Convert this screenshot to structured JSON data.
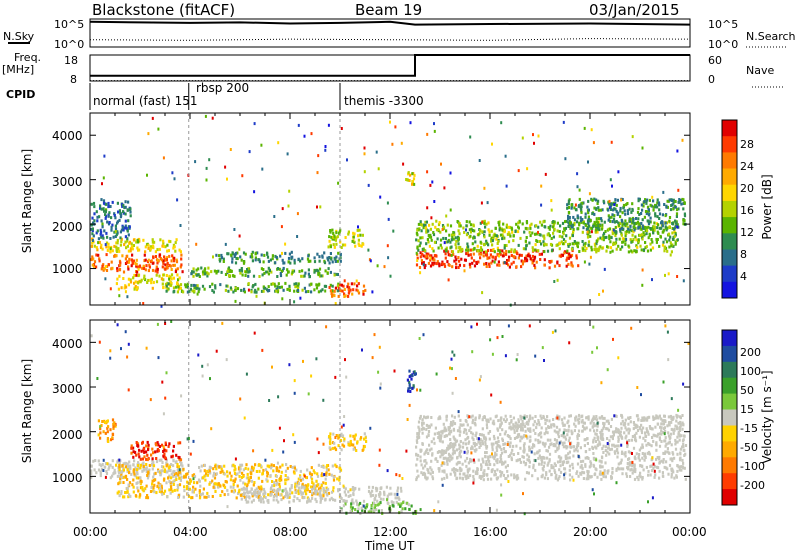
{
  "header": {
    "radar": "Blackstone (fitACF)",
    "beam": "Beam 19",
    "date": "03/Jan/2015"
  },
  "noise_panel": {
    "left_label": "N.Sky",
    "right_label": "N.Search",
    "left_ticks": [
      "10^5",
      "10^0"
    ],
    "right_ticks": [
      "10^5",
      "10^0"
    ]
  },
  "freq_panel": {
    "left_label_line1": "Freq.",
    "left_label_line2": "[MHz]",
    "right_label": "Nave",
    "left_ticks": [
      "18",
      "8"
    ],
    "right_ticks": [
      "60",
      "0"
    ]
  },
  "cpid_panel": {
    "label": "CPID",
    "segments": [
      {
        "name": "normal (fast) 151",
        "start_hour": 0.0
      },
      {
        "name": "rbsp 200",
        "start_hour": 3.95
      },
      {
        "name": "themis -3300",
        "start_hour": 10.0
      }
    ]
  },
  "power_panel": {
    "ylabel": "Slant Range [km]",
    "cbar_label": "Power [dB]",
    "cbar_ticks": [
      "28",
      "24",
      "20",
      "16",
      "12",
      "8",
      "4"
    ],
    "colors": [
      "#e00000",
      "#ff3a00",
      "#ff7a00",
      "#ffaa00",
      "#ffd600",
      "#b4d200",
      "#5ab400",
      "#2e8c50",
      "#2a6e8a",
      "#1e3cc8",
      "#1414e0"
    ]
  },
  "velocity_panel": {
    "ylabel": "Slant Range [km]",
    "cbar_label": "Velocity [m s⁻¹]",
    "cbar_ticks": [
      "200",
      "100",
      "50",
      "15",
      "-15",
      "-50",
      "-100",
      "-200"
    ],
    "colors": [
      "#1a1ac8",
      "#1f4ca0",
      "#2d7a5a",
      "#3aa02a",
      "#7ac83a",
      "#c8c8be",
      "#ffd200",
      "#ffaa00",
      "#ff7a00",
      "#ff3c00",
      "#e00000"
    ],
    "ground_scatter_color": "#c8c8be"
  },
  "x_axis": {
    "label": "Time UT",
    "ticks": [
      "00:00",
      "04:00",
      "08:00",
      "12:00",
      "16:00",
      "20:00",
      "00:00"
    ]
  },
  "y_axis": {
    "ticks": [
      "1000",
      "2000",
      "3000",
      "4000"
    ]
  },
  "chart_data": [
    {
      "type": "line",
      "title": "Blackstone (fitACF)",
      "x_range_hours": [
        0,
        24
      ],
      "series": [
        {
          "name": "N.Sky",
          "x": [
            0,
            2,
            4,
            6,
            8,
            10,
            12,
            13,
            16,
            20,
            24
          ],
          "y_log10": [
            4.5,
            4.4,
            4.3,
            4.4,
            4.2,
            4.3,
            4.5,
            4.0,
            4.1,
            4.2,
            4.0
          ]
        },
        {
          "name": "N.Search",
          "x": [
            0,
            4,
            8,
            12,
            16,
            20,
            24
          ],
          "y_log10": [
            1.3,
            1.2,
            1.4,
            1.3,
            1.2,
            1.5,
            1.4
          ]
        }
      ]
    },
    {
      "type": "line",
      "title": "Freq. / Nave",
      "series": [
        {
          "name": "Freq. [MHz]",
          "x": [
            0,
            13,
            13,
            24
          ],
          "y": [
            10,
            10,
            18,
            18
          ]
        },
        {
          "name": "Nave",
          "x": [
            0,
            24
          ],
          "y": [
            1,
            1
          ]
        }
      ],
      "ylim_freq": [
        8,
        18
      ],
      "ylim_nave": [
        0,
        60
      ]
    },
    {
      "type": "heatmap",
      "title": "Power [dB]",
      "xlabel": "Time UT",
      "ylabel": "Slant Range [km]",
      "x_range_hours": [
        0,
        24
      ],
      "y_range_km": [
        180,
        4500
      ],
      "value_range": [
        0,
        32
      ],
      "bands": [
        {
          "t0": 0.0,
          "t1": 3.7,
          "r0": 950,
          "r1": 1350,
          "value": 26
        },
        {
          "t0": 0.0,
          "t1": 3.7,
          "r0": 1400,
          "r1": 1700,
          "value": 18
        },
        {
          "t0": 0.0,
          "t1": 1.6,
          "r0": 1700,
          "r1": 2600,
          "value": 8
        },
        {
          "t0": 1.0,
          "t1": 3.6,
          "r0": 550,
          "r1": 900,
          "value": 18
        },
        {
          "t0": 3.0,
          "t1": 10.0,
          "r0": 500,
          "r1": 700,
          "value": 12
        },
        {
          "t0": 4.0,
          "t1": 10.0,
          "r0": 850,
          "r1": 1050,
          "value": 12
        },
        {
          "t0": 5.0,
          "t1": 10.0,
          "r0": 1150,
          "r1": 1400,
          "value": 10
        },
        {
          "t0": 9.5,
          "t1": 11.0,
          "r0": 400,
          "r1": 700,
          "value": 26
        },
        {
          "t0": 9.5,
          "t1": 11.0,
          "r0": 1500,
          "r1": 1900,
          "value": 16
        },
        {
          "t0": 12.6,
          "t1": 13.0,
          "r0": 2900,
          "r1": 3300,
          "value": 18
        },
        {
          "t0": 13.0,
          "t1": 19.5,
          "r0": 1050,
          "r1": 1450,
          "value": 28
        },
        {
          "t0": 13.0,
          "t1": 23.5,
          "r0": 1400,
          "r1": 2100,
          "value": 14
        },
        {
          "t0": 19.0,
          "t1": 23.8,
          "r0": 1900,
          "r1": 2600,
          "value": 10
        }
      ]
    },
    {
      "type": "heatmap",
      "title": "Velocity [m s⁻¹]",
      "xlabel": "Time UT",
      "ylabel": "Slant Range [km]",
      "x_range_hours": [
        0,
        24
      ],
      "y_range_km": [
        180,
        4500
      ],
      "value_range": [
        -250,
        250
      ],
      "bands": [
        {
          "t0": 0.0,
          "t1": 3.7,
          "r0": 1000,
          "r1": 1400,
          "value": 0,
          "ground": true
        },
        {
          "t0": 1.6,
          "t1": 3.6,
          "r0": 1400,
          "r1": 1800,
          "value": -200
        },
        {
          "t0": 0.3,
          "t1": 1.0,
          "r0": 1800,
          "r1": 2300,
          "value": -100
        },
        {
          "t0": 1.0,
          "t1": 10.0,
          "r0": 550,
          "r1": 1300,
          "value": -50
        },
        {
          "t0": 6.0,
          "t1": 12.5,
          "r0": 450,
          "r1": 800,
          "value": 0,
          "ground": true
        },
        {
          "t0": 9.5,
          "t1": 11.0,
          "r0": 1600,
          "r1": 2000,
          "value": -50
        },
        {
          "t0": 10.0,
          "t1": 13.0,
          "r0": 200,
          "r1": 450,
          "value": 40
        },
        {
          "t0": 12.6,
          "t1": 13.0,
          "r0": 2900,
          "r1": 3400,
          "value": 200
        },
        {
          "t0": 13.0,
          "t1": 23.8,
          "r0": 950,
          "r1": 2400,
          "value": 0,
          "ground": true
        }
      ]
    }
  ]
}
